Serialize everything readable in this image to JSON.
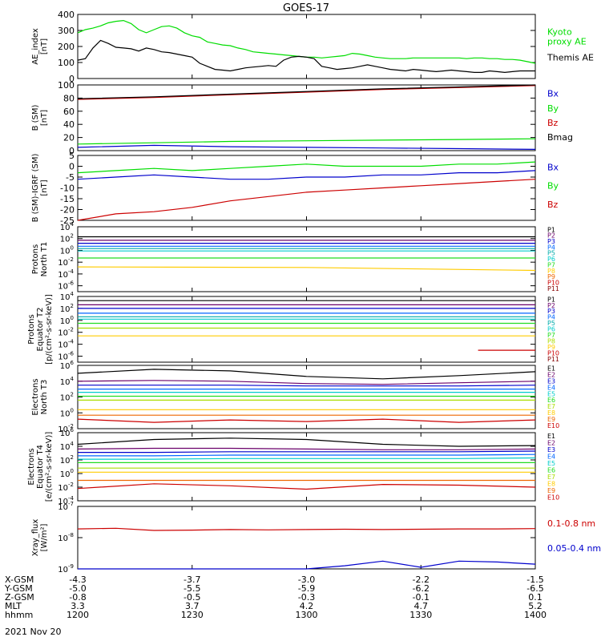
{
  "title": "GOES-17",
  "date_label": "2021 Nov 20",
  "colors": {
    "green": "#00dd00",
    "black": "#000000",
    "blue": "#0000cc",
    "red": "#cc0000",
    "P": [
      "#000000",
      "#6a006a",
      "#0000cc",
      "#0066ff",
      "#00aaaa",
      "#00cccc",
      "#22dd22",
      "#aadd00",
      "#ffcc00",
      "#ee6600",
      "#cc0000",
      "#880000"
    ]
  },
  "ephemeris": {
    "rows": [
      {
        "label": "X-GSM",
        "values": [
          "-4.3",
          "-3.7",
          "-3.0",
          "-2.2",
          "-1.5"
        ]
      },
      {
        "label": "Y-GSM",
        "values": [
          "-5.0",
          "-5.5",
          "-5.9",
          "-6.2",
          "-6.5"
        ]
      },
      {
        "label": "Z-GSM",
        "values": [
          "-0.8",
          "-0.5",
          "-0.3",
          "-0.1",
          "0.1"
        ]
      },
      {
        "label": "MLT",
        "values": [
          "3.3",
          "3.7",
          "4.2",
          "4.7",
          "5.2"
        ]
      },
      {
        "label": "hhmm",
        "values": [
          "1200",
          "1230",
          "1300",
          "1330",
          "1400"
        ]
      }
    ]
  },
  "chart_data": [
    {
      "type": "line",
      "ylabel": "AE_index\n[nT]",
      "ylim": [
        0,
        420
      ],
      "yticks": [
        "0",
        "100",
        "200",
        "300",
        "400"
      ],
      "x": [
        0,
        2,
        4,
        6,
        8,
        10,
        12,
        14,
        16,
        18,
        20,
        22,
        24,
        26,
        28,
        30,
        32,
        34,
        36,
        38,
        40,
        42,
        44,
        46,
        48,
        50,
        52,
        54,
        56,
        58,
        60,
        62,
        64,
        66,
        68,
        70,
        72,
        74,
        76,
        78,
        80,
        82,
        84,
        86,
        88,
        90,
        92,
        94,
        96,
        98,
        100,
        102,
        104,
        106,
        108,
        110,
        112,
        114,
        116,
        118,
        120
      ],
      "series": [
        {
          "name": "Kyoto\nproxy AE",
          "color": "green",
          "values": [
            300,
            320,
            330,
            345,
            365,
            375,
            380,
            360,
            320,
            300,
            320,
            340,
            345,
            330,
            300,
            280,
            270,
            240,
            230,
            220,
            215,
            200,
            190,
            175,
            170,
            165,
            160,
            155,
            150,
            145,
            140,
            140,
            135,
            140,
            145,
            150,
            165,
            160,
            150,
            140,
            135,
            130,
            130,
            130,
            135,
            135,
            135,
            135,
            135,
            135,
            135,
            130,
            135,
            135,
            130,
            130,
            125,
            125,
            120,
            110,
            100
          ]
        },
        {
          "name": "Themis AE",
          "color": "black",
          "values": [
            120,
            130,
            200,
            250,
            230,
            205,
            200,
            195,
            180,
            200,
            190,
            175,
            170,
            160,
            150,
            140,
            100,
            80,
            60,
            55,
            50,
            60,
            70,
            75,
            80,
            85,
            80,
            120,
            140,
            145,
            140,
            130,
            80,
            70,
            60,
            65,
            70,
            80,
            90,
            80,
            70,
            60,
            55,
            50,
            60,
            55,
            50,
            45,
            50,
            55,
            50,
            45,
            40,
            40,
            50,
            45,
            40,
            45,
            50,
            50,
            50
          ]
        }
      ]
    },
    {
      "type": "line",
      "ylabel": "B (SM)\n[nT]",
      "ylim": [
        0,
        100
      ],
      "yticks": [
        "0",
        "20",
        "40",
        "60",
        "80",
        "100"
      ],
      "x": [
        0,
        20,
        40,
        60,
        80,
        100,
        120
      ],
      "series": [
        {
          "name": "Bx",
          "color": "blue",
          "values": [
            5,
            8,
            6,
            5,
            4,
            3,
            2
          ]
        },
        {
          "name": "By",
          "color": "green",
          "values": [
            10,
            12,
            14,
            15,
            16,
            17,
            18
          ]
        },
        {
          "name": "Bz",
          "color": "red",
          "values": [
            78,
            81,
            85,
            89,
            93,
            96,
            99
          ]
        },
        {
          "name": "Bmag",
          "color": "black",
          "values": [
            79,
            82,
            86,
            90,
            94,
            97,
            100
          ]
        }
      ]
    },
    {
      "type": "line",
      "ylabel": "B (SM)-IGRF (SM)\n[nT]",
      "ylim": [
        -25,
        5
      ],
      "yticks": [
        "-25",
        "-20",
        "-15",
        "-10",
        "-5",
        "0",
        "5"
      ],
      "x": [
        0,
        10,
        20,
        30,
        40,
        50,
        60,
        70,
        80,
        90,
        100,
        110,
        120
      ],
      "series": [
        {
          "name": "Bx",
          "color": "blue",
          "values": [
            -6,
            -5,
            -4,
            -5,
            -6,
            -6,
            -5,
            -5,
            -4,
            -4,
            -3,
            -3,
            -2
          ]
        },
        {
          "name": "By",
          "color": "green",
          "values": [
            -3,
            -2,
            -1,
            -2,
            -1,
            0,
            1,
            0,
            0,
            0,
            1,
            1,
            2
          ]
        },
        {
          "name": "Bz",
          "color": "red",
          "values": [
            -25,
            -22,
            -21,
            -19,
            -16,
            -14,
            -12,
            -11,
            -10,
            -9,
            -8,
            -7,
            -6
          ]
        }
      ]
    },
    {
      "type": "line",
      "ylabel": "Protons\nNorth T1",
      "log": true,
      "ylim": [
        -7,
        4
      ],
      "ytick_exps": [
        -6,
        -4,
        -2,
        0,
        2,
        4
      ],
      "channels": [
        {
          "name": "P1",
          "color_index": 0,
          "values": [
            2.3,
            2.3,
            2.3
          ]
        },
        {
          "name": "P2",
          "color_index": 1,
          "values": [
            1.7,
            1.7,
            1.7
          ]
        },
        {
          "name": "P3",
          "color_index": 2,
          "values": [
            1.2,
            1.2,
            1.2
          ]
        },
        {
          "name": "P4",
          "color_index": 3,
          "values": [
            0.7,
            0.7,
            0.7
          ]
        },
        {
          "name": "P5",
          "color_index": 4,
          "values": [
            0.3,
            0.3,
            0.3
          ]
        },
        {
          "name": "P6",
          "color_index": 5,
          "values": [
            -0.1,
            -0.1,
            -0.1
          ]
        },
        {
          "name": "P7",
          "color_index": 6,
          "values": [
            -1.3,
            -1.3,
            -1.3
          ]
        },
        {
          "name": "P8",
          "color_index": 8,
          "values": [
            -2.8,
            -2.9,
            -3.4
          ]
        },
        {
          "name": "P9",
          "color_index": 9,
          "values": []
        },
        {
          "name": "P10",
          "color_index": 10,
          "values": []
        },
        {
          "name": "P11",
          "color_index": 11,
          "values": []
        }
      ]
    },
    {
      "type": "line",
      "ylabel": "Protons\nEquator T2\n[p/(cm²-s-sr-keV)]",
      "log": true,
      "ylim": [
        -7,
        4
      ],
      "ytick_exps": [
        -6,
        -4,
        -2,
        0,
        2,
        4
      ],
      "channels": [
        {
          "name": "P1",
          "color_index": 0,
          "values": [
            3.3,
            3.3,
            3.3
          ]
        },
        {
          "name": "P2",
          "color_index": 1,
          "values": [
            2.6,
            2.6,
            2.6
          ]
        },
        {
          "name": "P3",
          "color_index": 2,
          "values": [
            2.0,
            2.0,
            2.0
          ]
        },
        {
          "name": "P4",
          "color_index": 3,
          "values": [
            1.2,
            1.2,
            1.2
          ]
        },
        {
          "name": "P5",
          "color_index": 4,
          "values": [
            0.6,
            0.6,
            0.6
          ]
        },
        {
          "name": "P6",
          "color_index": 5,
          "values": [
            0.2,
            0.2,
            0.2
          ]
        },
        {
          "name": "P7",
          "color_index": 6,
          "values": [
            -0.5,
            -0.5,
            -0.5
          ]
        },
        {
          "name": "P8",
          "color_index": 7,
          "values": [
            -1.3,
            -1.3,
            -1.3
          ]
        },
        {
          "name": "P9",
          "color_index": 8,
          "values": [
            -2.6,
            -2.6,
            -2.6
          ]
        },
        {
          "name": "P10",
          "color_index": 10,
          "values": [
            -5.0,
            -5.0
          ]
        },
        {
          "name": "P11",
          "color_index": 11,
          "values": []
        }
      ]
    },
    {
      "type": "line",
      "ylabel": "Electrons\nNorth T3",
      "log": true,
      "ylim": [
        -2,
        6
      ],
      "ytick_exps": [
        -2,
        0,
        2,
        4,
        6
      ],
      "channels": [
        {
          "name": "E1",
          "color_index": 0,
          "values": [
            5.0,
            5.5,
            5.3,
            4.6,
            4.3,
            4.7,
            5.2
          ]
        },
        {
          "name": "E2",
          "color_index": 1,
          "values": [
            4.0,
            4.1,
            4.0,
            3.7,
            3.6,
            3.8,
            4.0
          ]
        },
        {
          "name": "E3",
          "color_index": 2,
          "values": [
            3.5,
            3.5,
            3.5,
            3.4,
            3.4,
            3.4,
            3.5
          ]
        },
        {
          "name": "E4",
          "color_index": 3,
          "values": [
            3.0,
            3.0,
            3.0,
            3.0,
            3.0,
            3.0,
            3.0
          ]
        },
        {
          "name": "E5",
          "color_index": 5,
          "values": [
            2.6,
            2.6,
            2.6,
            2.6,
            2.6,
            2.6,
            2.6
          ]
        },
        {
          "name": "E6",
          "color_index": 6,
          "values": [
            2.1,
            2.1,
            2.1,
            2.1,
            2.1,
            2.1,
            2.1
          ]
        },
        {
          "name": "E7",
          "color_index": 7,
          "values": [
            1.6,
            1.6,
            1.6,
            1.6,
            1.6,
            1.6,
            1.6
          ]
        },
        {
          "name": "E8",
          "color_index": 8,
          "values": [
            0.4,
            0.4,
            0.4,
            0.4,
            0.4,
            0.4,
            0.4
          ]
        },
        {
          "name": "E9",
          "color_index": 9,
          "values": [
            -0.3,
            -0.3,
            -0.3,
            -0.3,
            -0.3,
            -0.3,
            -0.3
          ]
        },
        {
          "name": "E10",
          "color_index": 10,
          "values": [
            -0.8,
            -1.2,
            -0.9,
            -1.1,
            -0.8,
            -1.2,
            -0.9
          ]
        }
      ]
    },
    {
      "type": "line",
      "ylabel": "Electrons\nEquator T4\n[e/(cm²-s-sr-keV)]",
      "log": true,
      "ylim": [
        -4,
        6
      ],
      "ytick_exps": [
        -4,
        -2,
        0,
        2,
        4,
        6
      ],
      "channels": [
        {
          "name": "E1",
          "color_index": 0,
          "values": [
            4.3,
            5.0,
            5.2,
            5.0,
            4.3,
            4.0,
            4.1
          ]
        },
        {
          "name": "E2",
          "color_index": 1,
          "values": [
            3.6,
            3.7,
            3.7,
            3.6,
            3.5,
            3.5,
            3.6
          ]
        },
        {
          "name": "E3",
          "color_index": 2,
          "values": [
            3.1,
            3.1,
            3.2,
            3.2,
            3.2,
            3.2,
            3.3
          ]
        },
        {
          "name": "E4",
          "color_index": 3,
          "values": [
            2.6,
            2.6,
            2.7,
            2.7,
            2.7,
            2.7,
            2.8
          ]
        },
        {
          "name": "E5",
          "color_index": 5,
          "values": [
            2.1,
            2.1,
            2.2,
            2.2,
            2.2,
            2.2,
            2.3
          ]
        },
        {
          "name": "E6",
          "color_index": 6,
          "values": [
            1.6,
            1.6,
            1.6,
            1.6,
            1.6,
            1.6,
            1.6
          ]
        },
        {
          "name": "E7",
          "color_index": 7,
          "values": [
            0.8,
            0.8,
            0.8,
            0.8,
            0.8,
            0.8,
            0.8
          ]
        },
        {
          "name": "E8",
          "color_index": 8,
          "values": [
            0.2,
            0.2,
            0.2,
            0.2,
            0.2,
            0.2,
            0.2
          ]
        },
        {
          "name": "E9",
          "color_index": 9,
          "values": [
            -1.0,
            -1.0,
            -1.0,
            -1.0,
            -1.0,
            -1.0,
            -1.0
          ]
        },
        {
          "name": "E10",
          "color_index": 10,
          "values": [
            -2.2,
            -1.5,
            -1.8,
            -2.3,
            -1.6,
            -1.7,
            -2.0
          ]
        }
      ]
    },
    {
      "type": "line",
      "ylabel": "Xray_flux\n[W/m²]",
      "log": true,
      "ylim": [
        -9,
        -7
      ],
      "ytick_exps": [
        -9,
        -8,
        -7
      ],
      "x": [
        0,
        10,
        20,
        30,
        40,
        50,
        60,
        70,
        80,
        90,
        100,
        110,
        120
      ],
      "series": [
        {
          "name": "0.1-0.8 nm",
          "color": "red",
          "values": [
            -7.72,
            -7.7,
            -7.77,
            -7.76,
            -7.74,
            -7.75,
            -7.74,
            -7.73,
            -7.74,
            -7.73,
            -7.72,
            -7.72,
            -7.71
          ]
        },
        {
          "name": "0.05-0.4 nm",
          "color": "blue",
          "values": [
            -9.0,
            -9.0,
            -9.0,
            -9.0,
            -9.0,
            -9.0,
            -9.0,
            -8.9,
            -8.75,
            -8.95,
            -8.75,
            -8.78,
            -8.85
          ]
        }
      ]
    }
  ]
}
